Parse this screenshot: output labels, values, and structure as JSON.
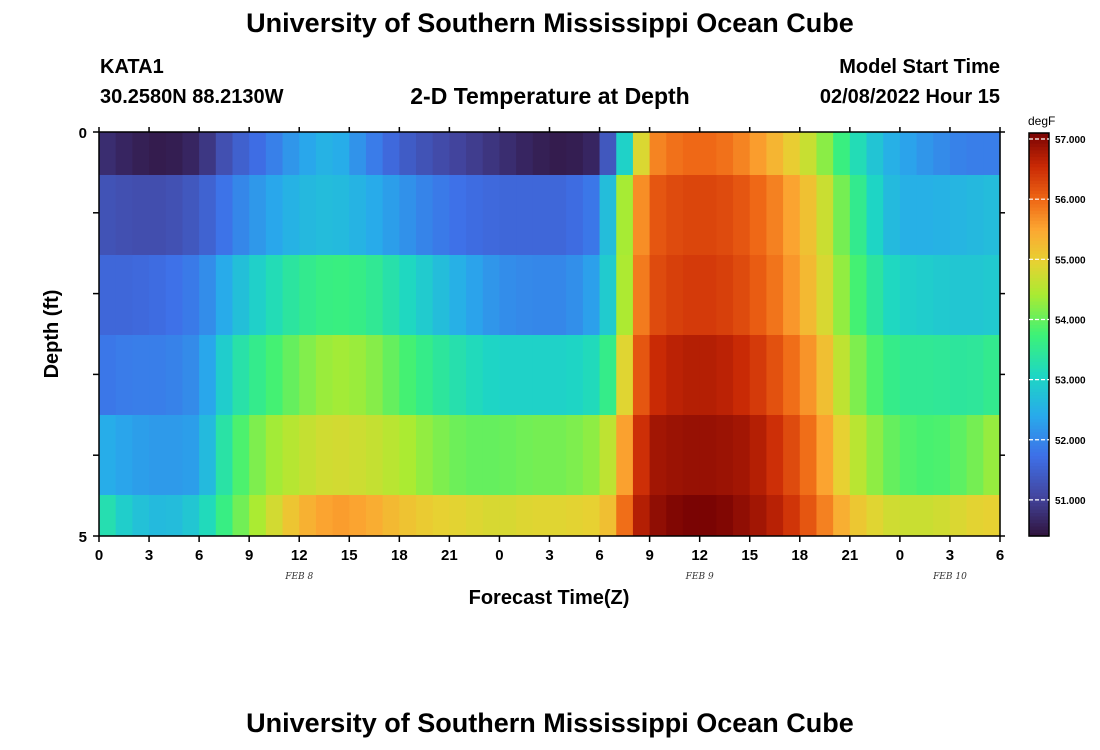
{
  "header": {
    "title": "University of Southern Mississippi Ocean Cube",
    "station": "KATA1",
    "coords": "30.2580N  88.2130W",
    "plot_title": "2-D Temperature at Depth",
    "model_start_label": "Model Start Time",
    "model_start_value": "02/08/2022 Hour 15",
    "footer_title": "University of Southern Mississippi Ocean Cube"
  },
  "chart_data": {
    "type": "heatmap",
    "title": "2-D Temperature at Depth",
    "xlabel": "Forecast Time(Z)",
    "ylabel": "Depth (ft)",
    "x_hours": [
      0,
      54
    ],
    "x_tick_labels": [
      "0",
      "3",
      "6",
      "9",
      "12",
      "15",
      "18",
      "21",
      "0",
      "3",
      "6",
      "9",
      "12",
      "15",
      "18",
      "21",
      "0",
      "3",
      "6"
    ],
    "date_labels": [
      {
        "label": "FEB 8",
        "hour": 12
      },
      {
        "label": "FEB 9",
        "hour": 36
      },
      {
        "label": "FEB 10",
        "hour": 51
      }
    ],
    "y_range": [
      0,
      5
    ],
    "y_tick_labels": [
      "0",
      "5"
    ],
    "colorbar": {
      "unit": "degF",
      "range": [
        50.4,
        57.1
      ],
      "tick_values": [
        51,
        52,
        53,
        54,
        55,
        56,
        57
      ],
      "tick_labels": [
        "51.000",
        "52.000",
        "53.000",
        "54.000",
        "55.000",
        "56.000",
        "57.000"
      ]
    },
    "depth_rows": [
      {
        "depth_ft": 0.25,
        "hours": [
          0,
          2,
          4,
          6,
          8,
          10,
          12,
          14,
          16,
          18,
          20,
          22,
          24,
          26,
          28,
          30,
          31,
          32,
          33,
          35,
          37,
          39,
          41,
          43,
          45,
          47,
          48,
          50,
          52,
          54
        ],
        "temps": [
          50.8,
          50.6,
          50.5,
          50.7,
          51.4,
          51.8,
          52.3,
          52.6,
          52.0,
          51.5,
          51.2,
          51.0,
          50.8,
          50.6,
          50.5,
          50.7,
          52.0,
          54.0,
          55.7,
          56.0,
          56.0,
          55.7,
          55.2,
          54.5,
          53.4,
          52.6,
          52.4,
          52.1,
          51.9,
          51.9
        ]
      },
      {
        "depth_ft": 1.0,
        "hours": [
          0,
          2,
          4,
          6,
          8,
          10,
          12,
          14,
          16,
          18,
          20,
          22,
          24,
          26,
          28,
          30,
          31,
          32,
          33,
          35,
          37,
          39,
          41,
          43,
          45,
          47,
          48,
          50,
          52,
          54
        ],
        "temps": [
          51.3,
          51.2,
          51.2,
          51.4,
          51.9,
          52.3,
          52.6,
          52.7,
          52.5,
          52.2,
          51.9,
          51.7,
          51.6,
          51.6,
          51.6,
          51.9,
          53.5,
          55.3,
          56.1,
          56.3,
          56.3,
          56.1,
          55.7,
          55.0,
          53.8,
          52.8,
          52.5,
          52.5,
          52.6,
          52.7
        ]
      },
      {
        "depth_ft": 2.0,
        "hours": [
          0,
          2,
          4,
          6,
          8,
          10,
          12,
          14,
          16,
          18,
          20,
          22,
          24,
          26,
          28,
          30,
          31,
          32,
          33,
          35,
          37,
          39,
          41,
          43,
          45,
          47,
          48,
          50,
          52,
          54
        ],
        "temps": [
          51.6,
          51.6,
          51.7,
          51.9,
          52.6,
          53.1,
          53.5,
          53.7,
          53.6,
          53.2,
          52.8,
          52.4,
          52.1,
          52.0,
          52.0,
          52.4,
          53.4,
          55.5,
          56.2,
          56.4,
          56.4,
          56.2,
          55.8,
          55.1,
          54.0,
          53.2,
          53.0,
          52.9,
          52.8,
          52.9
        ]
      },
      {
        "depth_ft": 3.0,
        "hours": [
          0,
          2,
          4,
          6,
          8,
          10,
          12,
          14,
          16,
          18,
          20,
          22,
          24,
          26,
          28,
          30,
          31,
          32,
          33,
          35,
          37,
          39,
          41,
          43,
          45,
          47,
          48,
          50,
          52,
          54
        ],
        "temps": [
          51.8,
          51.9,
          51.9,
          52.1,
          53.2,
          53.7,
          54.1,
          54.4,
          54.3,
          53.9,
          53.5,
          53.2,
          53.0,
          53.0,
          53.0,
          53.2,
          54.0,
          55.8,
          56.5,
          56.7,
          56.7,
          56.5,
          56.1,
          55.5,
          54.3,
          53.7,
          53.5,
          53.5,
          53.4,
          53.6
        ]
      },
      {
        "depth_ft": 4.0,
        "hours": [
          0,
          2,
          4,
          6,
          8,
          10,
          12,
          14,
          16,
          18,
          20,
          22,
          24,
          26,
          28,
          30,
          31,
          32,
          33,
          35,
          37,
          39,
          41,
          43,
          45,
          47,
          48,
          50,
          52,
          54
        ],
        "temps": [
          52.5,
          52.3,
          52.2,
          52.3,
          53.7,
          54.3,
          54.6,
          54.8,
          54.7,
          54.5,
          54.2,
          54.0,
          54.0,
          54.1,
          54.1,
          54.3,
          54.9,
          56.2,
          56.8,
          56.9,
          56.9,
          56.8,
          56.4,
          55.8,
          54.7,
          54.1,
          53.9,
          53.8,
          54.0,
          54.4
        ]
      },
      {
        "depth_ft": 4.75,
        "hours": [
          0,
          2,
          4,
          6,
          8,
          10,
          12,
          14,
          16,
          18,
          20,
          22,
          24,
          26,
          28,
          30,
          31,
          32,
          33,
          35,
          37,
          39,
          41,
          43,
          45,
          47,
          48,
          50,
          52,
          54
        ],
        "temps": [
          53.4,
          52.8,
          52.6,
          52.9,
          53.9,
          54.6,
          55.3,
          55.6,
          55.5,
          55.2,
          55.0,
          54.9,
          54.8,
          54.9,
          54.9,
          55.0,
          55.4,
          56.5,
          56.9,
          57.1,
          57.1,
          56.9,
          56.6,
          56.0,
          55.2,
          54.8,
          54.7,
          54.7,
          54.9,
          55.0
        ]
      }
    ],
    "row_edges_px": [
      132,
      175,
      255,
      335,
      415,
      495,
      536
    ]
  }
}
